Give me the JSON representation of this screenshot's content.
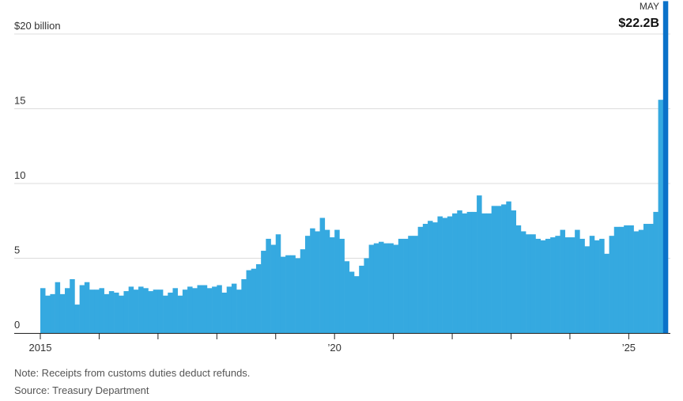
{
  "chart_data": {
    "type": "bar",
    "x_start": "2015-01",
    "x_end": "2025-05",
    "frequency": "monthly",
    "xtick_labels": [
      {
        "date": "2015-01",
        "label": "2015"
      },
      {
        "date": "2020-01",
        "label": "’20"
      },
      {
        "date": "2025-01",
        "label": "’25"
      }
    ],
    "ytick_labels": [
      {
        "value": 20,
        "label": "$20 billion"
      },
      {
        "value": 15,
        "label": "15"
      },
      {
        "value": 10,
        "label": "10"
      },
      {
        "value": 5,
        "label": "5"
      },
      {
        "value": 0,
        "label": "0"
      }
    ],
    "ylim": [
      0,
      22.2
    ],
    "grid": true,
    "bar_color": "#35a9e0",
    "highlight_color": "#0b72c9",
    "callout": {
      "month": "MAY",
      "value": "$22.2B"
    },
    "values": [
      3.0,
      2.5,
      2.6,
      3.4,
      2.6,
      3.0,
      3.6,
      1.9,
      3.2,
      3.4,
      2.9,
      2.9,
      3.0,
      2.6,
      2.8,
      2.7,
      2.5,
      2.8,
      3.1,
      2.9,
      3.1,
      3.0,
      2.8,
      2.9,
      2.9,
      2.5,
      2.7,
      3.0,
      2.5,
      2.9,
      3.1,
      3.0,
      3.2,
      3.2,
      3.0,
      3.1,
      3.2,
      2.7,
      3.1,
      3.3,
      2.9,
      3.6,
      4.2,
      4.3,
      4.6,
      5.5,
      6.3,
      5.9,
      6.6,
      5.1,
      5.2,
      5.2,
      5.0,
      5.6,
      6.5,
      7.0,
      6.8,
      7.7,
      6.9,
      6.4,
      6.9,
      6.3,
      4.8,
      4.1,
      3.8,
      4.5,
      5.0,
      5.9,
      6.0,
      6.1,
      6.0,
      6.0,
      5.9,
      6.3,
      6.3,
      6.5,
      6.5,
      7.1,
      7.3,
      7.5,
      7.4,
      7.8,
      7.7,
      7.8,
      8.0,
      8.2,
      8.0,
      8.1,
      8.1,
      9.2,
      8.0,
      8.0,
      8.5,
      8.5,
      8.6,
      8.8,
      8.2,
      7.2,
      6.8,
      6.6,
      6.6,
      6.3,
      6.2,
      6.3,
      6.4,
      6.5,
      6.9,
      6.4,
      6.4,
      6.9,
      6.3,
      5.8,
      6.5,
      6.2,
      6.3,
      5.3,
      6.5,
      7.1,
      7.1,
      7.2,
      7.2,
      6.8,
      6.9,
      7.3,
      7.3,
      8.1,
      15.6,
      22.2
    ]
  },
  "footer": {
    "note": "Note: Receipts from customs duties deduct refunds.",
    "source": "Source: Treasury Department"
  }
}
